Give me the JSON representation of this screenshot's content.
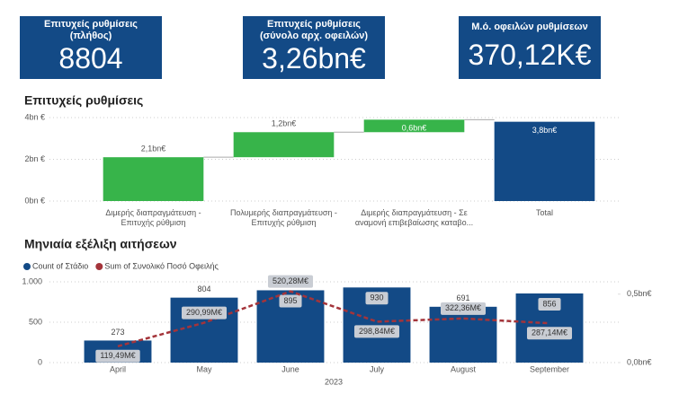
{
  "kpis": [
    {
      "title": "Επιτυχείς ρυθμίσεις (πλήθος)",
      "value": "8804"
    },
    {
      "title": "Επιτυχείς ρυθμίσεις (σύνολο αρχ. οφειλών)",
      "value": "3,26bn€"
    },
    {
      "title": "Μ.ό. οφειλών ρυθμίσεων",
      "value": "370,12K€"
    }
  ],
  "chart_data": [
    {
      "type": "waterfall",
      "title": "Επιτυχείς ρυθμίσεις",
      "categories": [
        "Διμερής διαπραγμάτευση - Επιτυχής ρύθμιση",
        "Πολυμερής διαπραγμάτευση - Επιτυχής ρύθμιση",
        "Διμερής διαπραγμάτευση - Σε αναμονή επιβεβαίωσης καταβο...",
        "Total"
      ],
      "values": [
        2.1,
        1.2,
        0.6,
        3.8
      ],
      "value_labels": [
        "2,1bn€",
        "1,2bn€",
        "0,6bn€",
        "3,8bn€"
      ],
      "increase_color": "#37b44a",
      "total_color": "#134a86",
      "ylim": [
        0,
        4
      ],
      "yticks": [
        {
          "value": 0,
          "label": "0bn €"
        },
        {
          "value": 2,
          "label": "2bn €"
        },
        {
          "value": 4,
          "label": "4bn €"
        }
      ],
      "grid": true
    },
    {
      "type": "bar_line",
      "title": "Μηνιαία εξέλιξη αιτήσεων",
      "categories": [
        "April",
        "May",
        "June",
        "July",
        "August",
        "September"
      ],
      "xlabel": "2023",
      "series": [
        {
          "name": "Count of Στάδιο",
          "type": "bar",
          "color": "#134a86",
          "values": [
            273,
            804,
            895,
            930,
            691,
            856
          ]
        },
        {
          "name": "Sum of Συνολικό Ποσό Οφειλής",
          "type": "line",
          "axis": "y2",
          "color": "#a4343a",
          "values": [
            0.11949,
            0.29099,
            0.52028,
            0.29884,
            0.32236,
            0.28714
          ],
          "value_labels": [
            "119,49M€",
            "290,99M€",
            "520,28M€",
            "298,84M€",
            "322,36M€",
            "287,14M€"
          ]
        }
      ],
      "ylim": [
        0,
        1000
      ],
      "yticks": [
        0,
        500,
        {
          "value": 1000,
          "label": "1.000"
        }
      ],
      "y2lim": [
        0,
        0.59
      ],
      "y2ticks": [
        {
          "value": 0,
          "label": "0,0bn€"
        },
        {
          "value": 0.5,
          "label": "0,5bn€"
        }
      ],
      "grid": true,
      "legend": "top-left"
    }
  ]
}
